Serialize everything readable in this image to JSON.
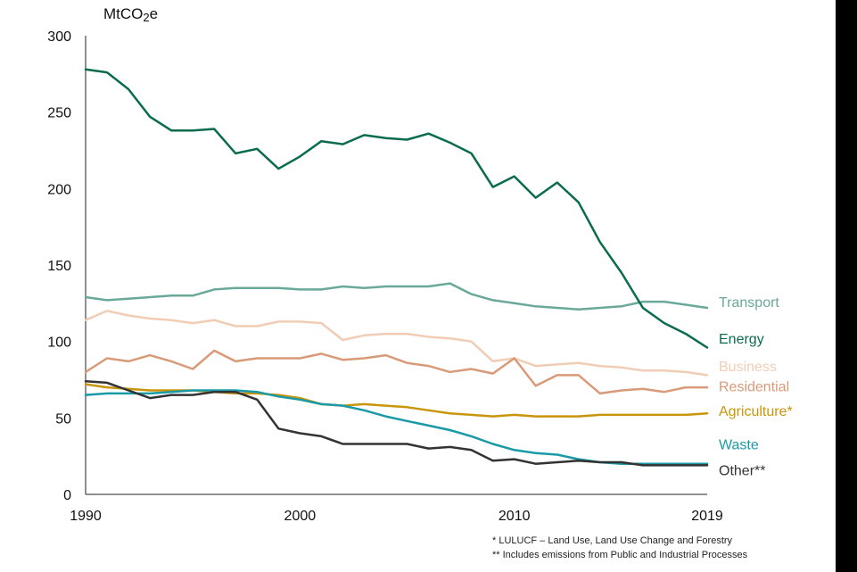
{
  "chart_data": {
    "type": "line",
    "unit_label_main": "MtCO",
    "unit_label_sub": "2",
    "unit_label_tail": "e",
    "ylim": [
      0,
      300
    ],
    "yticks": [
      0,
      50,
      100,
      150,
      200,
      250,
      300
    ],
    "xlim": [
      1990,
      2019
    ],
    "xticks": [
      1990,
      2000,
      2010,
      2019
    ],
    "grid": false,
    "x": [
      1990,
      1991,
      1992,
      1993,
      1994,
      1995,
      1996,
      1997,
      1998,
      1999,
      2000,
      2001,
      2002,
      2003,
      2004,
      2005,
      2006,
      2007,
      2008,
      2009,
      2010,
      2011,
      2012,
      2013,
      2014,
      2015,
      2016,
      2017,
      2018,
      2019
    ],
    "series": [
      {
        "name": "Transport",
        "color": "#6aa99a",
        "label_y": 126,
        "values": [
          129,
          127,
          128,
          129,
          130,
          130,
          134,
          135,
          135,
          135,
          134,
          134,
          136,
          135,
          136,
          136,
          136,
          138,
          131,
          127,
          125,
          123,
          122,
          121,
          122,
          123,
          126,
          126,
          124,
          122
        ]
      },
      {
        "name": "Energy",
        "color": "#0b6b4f",
        "label_y": 102,
        "values": [
          278,
          276,
          265,
          247,
          238,
          238,
          239,
          223,
          226,
          213,
          221,
          231,
          229,
          235,
          233,
          232,
          236,
          230,
          223,
          201,
          208,
          194,
          204,
          191,
          165,
          145,
          122,
          112,
          105,
          96
        ]
      },
      {
        "name": "Business",
        "color": "#f0cdb4",
        "label_y": 84,
        "values": [
          114,
          120,
          117,
          115,
          114,
          112,
          114,
          110,
          110,
          113,
          113,
          112,
          101,
          104,
          105,
          105,
          103,
          102,
          100,
          87,
          89,
          84,
          85,
          86,
          84,
          83,
          81,
          81,
          80,
          78
        ]
      },
      {
        "name": "Residential",
        "color": "#d89a78",
        "label_y": 71,
        "values": [
          80,
          89,
          87,
          91,
          87,
          82,
          94,
          87,
          89,
          89,
          89,
          92,
          88,
          89,
          91,
          86,
          84,
          80,
          82,
          79,
          89,
          71,
          78,
          78,
          66,
          68,
          69,
          67,
          70,
          70
        ]
      },
      {
        "name": "Agriculture*",
        "color": "#c9950a",
        "label_y": 55,
        "values": [
          72,
          70,
          69,
          68,
          68,
          68,
          67,
          66,
          66,
          65,
          63,
          59,
          58,
          59,
          58,
          57,
          55,
          53,
          52,
          51,
          52,
          51,
          51,
          51,
          52,
          52,
          52,
          52,
          52,
          53
        ]
      },
      {
        "name": "Waste",
        "color": "#1a9aa6",
        "label_y": 33,
        "values": [
          65,
          66,
          66,
          66,
          67,
          68,
          68,
          68,
          67,
          64,
          62,
          59,
          58,
          55,
          51,
          48,
          45,
          42,
          38,
          33,
          29,
          27,
          26,
          23,
          21,
          20,
          20,
          20,
          20,
          20
        ]
      },
      {
        "name": "Other**",
        "color": "#333333",
        "label_y": 16,
        "values": [
          74,
          73,
          68,
          63,
          65,
          65,
          67,
          67,
          62,
          43,
          40,
          38,
          33,
          33,
          33,
          33,
          30,
          31,
          29,
          22,
          23,
          20,
          21,
          22,
          21,
          21,
          19,
          19,
          19,
          19
        ]
      }
    ]
  },
  "footnotes": [
    "* LULUCF   – Land Use, Land Use Change and Forestry",
    "** Includes emissions from Public and Industrial Processes"
  ]
}
